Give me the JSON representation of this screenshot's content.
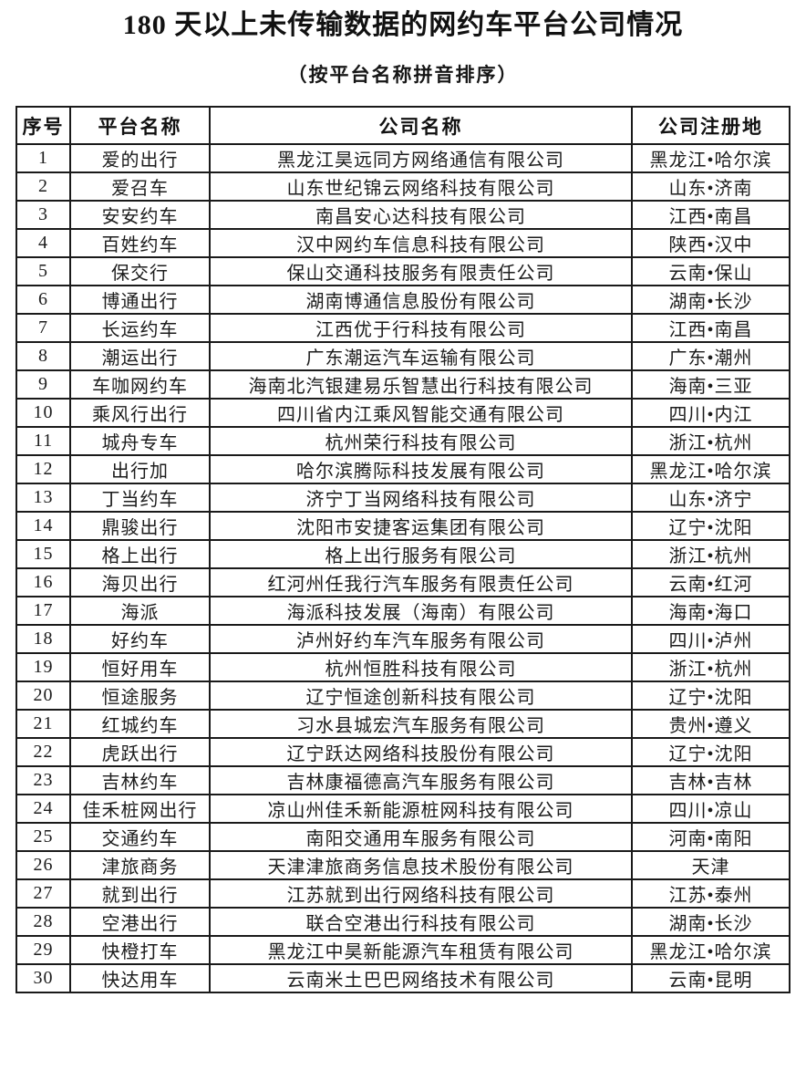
{
  "page": {
    "title": "180 天以上未传输数据的网约车平台公司情况",
    "subtitle": "（按平台名称拼音排序）"
  },
  "colors": {
    "background": "#ffffff",
    "text": "#1c1c1c",
    "border": "#1a1a1a"
  },
  "table": {
    "headers": [
      "序号",
      "平台名称",
      "公司名称",
      "公司注册地"
    ],
    "rows": [
      {
        "no": "1",
        "platform": "爱的出行",
        "company": "黑龙江昊远同方网络通信有限公司",
        "location": "黑龙江•哈尔滨"
      },
      {
        "no": "2",
        "platform": "爱召车",
        "company": "山东世纪锦云网络科技有限公司",
        "location": "山东•济南"
      },
      {
        "no": "3",
        "platform": "安安约车",
        "company": "南昌安心达科技有限公司",
        "location": "江西•南昌"
      },
      {
        "no": "4",
        "platform": "百姓约车",
        "company": "汉中网约车信息科技有限公司",
        "location": "陕西•汉中"
      },
      {
        "no": "5",
        "platform": "保交行",
        "company": "保山交通科技服务有限责任公司",
        "location": "云南•保山"
      },
      {
        "no": "6",
        "platform": "博通出行",
        "company": "湖南博通信息股份有限公司",
        "location": "湖南•长沙"
      },
      {
        "no": "7",
        "platform": "长运约车",
        "company": "江西优于行科技有限公司",
        "location": "江西•南昌"
      },
      {
        "no": "8",
        "platform": "潮运出行",
        "company": "广东潮运汽车运输有限公司",
        "location": "广东•潮州"
      },
      {
        "no": "9",
        "platform": "车咖网约车",
        "company": "海南北汽银建易乐智慧出行科技有限公司",
        "location": "海南•三亚"
      },
      {
        "no": "10",
        "platform": "乘风行出行",
        "company": "四川省内江乘风智能交通有限公司",
        "location": "四川•内江"
      },
      {
        "no": "11",
        "platform": "城舟专车",
        "company": "杭州荣行科技有限公司",
        "location": "浙江•杭州"
      },
      {
        "no": "12",
        "platform": "出行加",
        "company": "哈尔滨腾际科技发展有限公司",
        "location": "黑龙江•哈尔滨"
      },
      {
        "no": "13",
        "platform": "丁当约车",
        "company": "济宁丁当网络科技有限公司",
        "location": "山东•济宁"
      },
      {
        "no": "14",
        "platform": "鼎骏出行",
        "company": "沈阳市安捷客运集团有限公司",
        "location": "辽宁•沈阳"
      },
      {
        "no": "15",
        "platform": "格上出行",
        "company": "格上出行服务有限公司",
        "location": "浙江•杭州"
      },
      {
        "no": "16",
        "platform": "海贝出行",
        "company": "红河州任我行汽车服务有限责任公司",
        "location": "云南•红河"
      },
      {
        "no": "17",
        "platform": "海派",
        "company": "海派科技发展（海南）有限公司",
        "location": "海南•海口"
      },
      {
        "no": "18",
        "platform": "好约车",
        "company": "泸州好约车汽车服务有限公司",
        "location": "四川•泸州"
      },
      {
        "no": "19",
        "platform": "恒好用车",
        "company": "杭州恒胜科技有限公司",
        "location": "浙江•杭州"
      },
      {
        "no": "20",
        "platform": "恒途服务",
        "company": "辽宁恒途创新科技有限公司",
        "location": "辽宁•沈阳"
      },
      {
        "no": "21",
        "platform": "红城约车",
        "company": "习水县城宏汽车服务有限公司",
        "location": "贵州•遵义"
      },
      {
        "no": "22",
        "platform": "虎跃出行",
        "company": "辽宁跃达网络科技股份有限公司",
        "location": "辽宁•沈阳"
      },
      {
        "no": "23",
        "platform": "吉林约车",
        "company": "吉林康福德高汽车服务有限公司",
        "location": "吉林•吉林"
      },
      {
        "no": "24",
        "platform": "佳禾桩网出行",
        "company": "凉山州佳禾新能源桩网科技有限公司",
        "location": "四川•凉山"
      },
      {
        "no": "25",
        "platform": "交通约车",
        "company": "南阳交通用车服务有限公司",
        "location": "河南•南阳"
      },
      {
        "no": "26",
        "platform": "津旅商务",
        "company": "天津津旅商务信息技术股份有限公司",
        "location": "天津"
      },
      {
        "no": "27",
        "platform": "就到出行",
        "company": "江苏就到出行网络科技有限公司",
        "location": "江苏•泰州"
      },
      {
        "no": "28",
        "platform": "空港出行",
        "company": "联合空港出行科技有限公司",
        "location": "湖南•长沙"
      },
      {
        "no": "29",
        "platform": "快橙打车",
        "company": "黑龙江中昊新能源汽车租赁有限公司",
        "location": "黑龙江•哈尔滨"
      },
      {
        "no": "30",
        "platform": "快达用车",
        "company": "云南米土巴巴网络技术有限公司",
        "location": "云南•昆明"
      }
    ]
  }
}
